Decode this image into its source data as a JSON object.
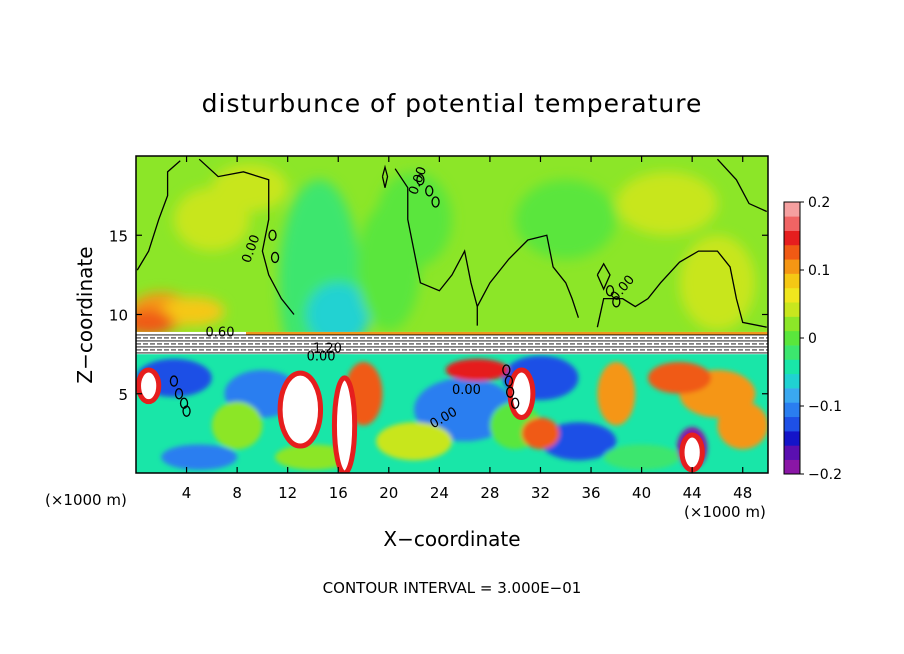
{
  "chart_data": {
    "type": "heatmap",
    "title": "disturbunce of potential temperature",
    "xlabel": "X−coordinate",
    "ylabel": "Z−coordinate",
    "x_unit_label": "(×1000 m)",
    "z_unit_label": "(×1000 m)",
    "xlim": [
      0,
      50
    ],
    "ylim": [
      0,
      20
    ],
    "x_ticks": [
      4,
      8,
      12,
      16,
      20,
      24,
      28,
      32,
      36,
      40,
      44,
      48
    ],
    "x_tick_labels": [
      "4",
      "8",
      "12",
      "16",
      "20",
      "24",
      "28",
      "32",
      "36",
      "40",
      "44",
      "48"
    ],
    "y_ticks": [
      5,
      10,
      15
    ],
    "y_tick_labels": [
      "5",
      "10",
      "15"
    ],
    "colorbar": {
      "range": [
        -0.2,
        0.2
      ],
      "ticks": [
        0.2,
        0.1,
        0,
        -0.1,
        -0.2
      ],
      "tick_labels": [
        "0.2",
        "0.1",
        "0",
        "−0.1",
        "−0.2"
      ],
      "colors": [
        "#8a16a6",
        "#5a0fb0",
        "#1414c8",
        "#1e50e6",
        "#2a7ef0",
        "#3aa8f0",
        "#20d2d2",
        "#19e6a8",
        "#3ce66e",
        "#5ae63c",
        "#8ce628",
        "#c8e61e",
        "#f0e61e",
        "#f5c814",
        "#f59614",
        "#f05a14",
        "#e61e1e",
        "#f06464",
        "#f5a0a0"
      ]
    },
    "contour_labels": [
      "0.00",
      "0.00",
      "0.00",
      "0.00",
      "0.00",
      "0.60",
      "1.20",
      "0.00"
    ],
    "footer": "CONTOUR INTERVAL = 3.000E−01"
  }
}
